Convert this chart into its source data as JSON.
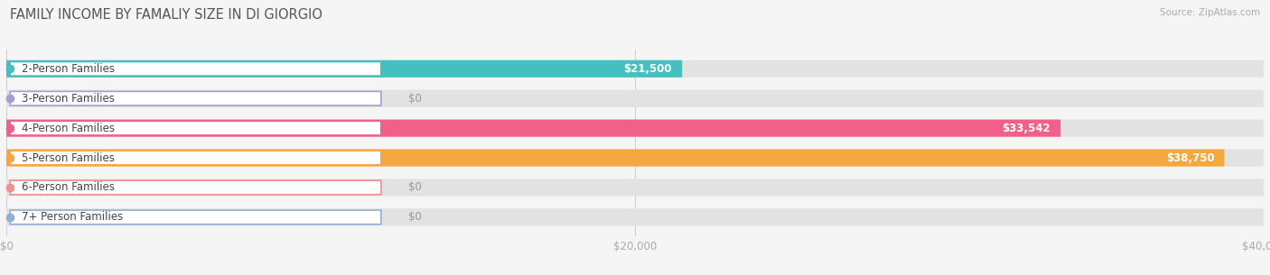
{
  "title": "FAMILY INCOME BY FAMALIY SIZE IN DI GIORGIO",
  "source": "Source: ZipAtlas.com",
  "categories": [
    "2-Person Families",
    "3-Person Families",
    "4-Person Families",
    "5-Person Families",
    "6-Person Families",
    "7+ Person Families"
  ],
  "values": [
    21500,
    0,
    33542,
    38750,
    0,
    0
  ],
  "bar_colors": [
    "#45bfbf",
    "#a0a0d0",
    "#f0608a",
    "#f5a840",
    "#f09090",
    "#90b0d8"
  ],
  "value_labels": [
    "$21,500",
    "$0",
    "$33,542",
    "$38,750",
    "$0",
    "$0"
  ],
  "background_color": "#f5f5f5",
  "bar_bg_color": "#e2e2e2",
  "xlim": [
    0,
    40000
  ],
  "xtick_labels": [
    "$0",
    "$20,000",
    "$40,000"
  ],
  "label_fontsize": 8.5,
  "title_fontsize": 10.5,
  "bar_height": 0.58
}
